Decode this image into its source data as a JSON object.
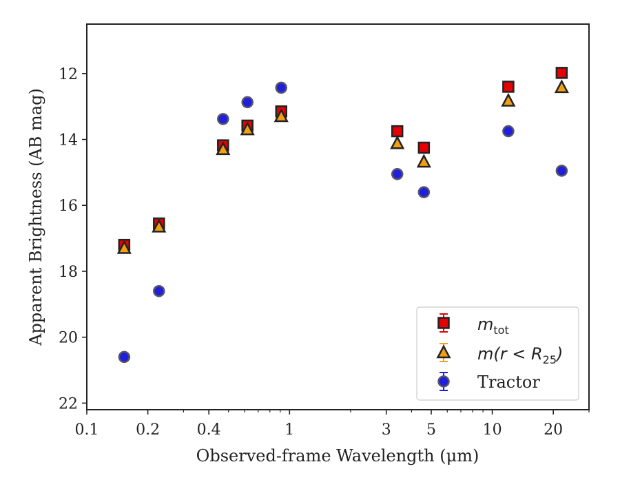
{
  "chart_data": {
    "type": "scatter",
    "xscale": "log",
    "xlim": [
      0.1,
      30
    ],
    "ylim": [
      22.2,
      10.5
    ],
    "y_inverted": true,
    "xlabel": "Observed-frame Wavelength (μm)",
    "ylabel": "Apparent Brightness (AB mag)",
    "xticks": [
      0.1,
      0.2,
      0.4,
      1,
      3,
      5,
      10,
      20
    ],
    "xtick_labels": [
      "0.1",
      "0.2",
      "0.4",
      "1",
      "3",
      "5",
      "10",
      "20"
    ],
    "yticks": [
      12,
      14,
      16,
      18,
      20,
      22
    ],
    "ytick_labels": [
      "12",
      "14",
      "16",
      "18",
      "20",
      "22"
    ],
    "grid": false,
    "legend_position": "lower-right",
    "series": [
      {
        "name": "m_tot",
        "legend_main": "m",
        "legend_sub": "tot",
        "marker": "square",
        "color": "#e60000",
        "x": [
          0.153,
          0.227,
          0.47,
          0.62,
          0.91,
          3.4,
          4.6,
          12.0,
          22.0
        ],
        "y": [
          17.2,
          16.55,
          14.18,
          13.58,
          13.15,
          13.75,
          14.25,
          12.4,
          11.98
        ]
      },
      {
        "name": "m(r < R_25)",
        "legend_main": "m(r < R",
        "legend_sub": "25",
        "legend_tail": ")",
        "marker": "triangle",
        "color": "#f0a010",
        "x": [
          0.153,
          0.227,
          0.47,
          0.62,
          0.91,
          3.4,
          4.6,
          12.0,
          22.0
        ],
        "y": [
          17.3,
          16.65,
          14.3,
          13.7,
          13.3,
          14.12,
          14.68,
          12.83,
          12.42
        ]
      },
      {
        "name": "Tractor",
        "legend_main": "Tractor",
        "marker": "circle",
        "color": "#1f1fdd",
        "x": [
          0.153,
          0.227,
          0.47,
          0.62,
          0.91,
          3.4,
          4.6,
          12.0,
          22.0
        ],
        "y": [
          20.6,
          18.6,
          13.38,
          12.87,
          12.43,
          15.05,
          15.6,
          13.75,
          14.95
        ]
      }
    ]
  }
}
